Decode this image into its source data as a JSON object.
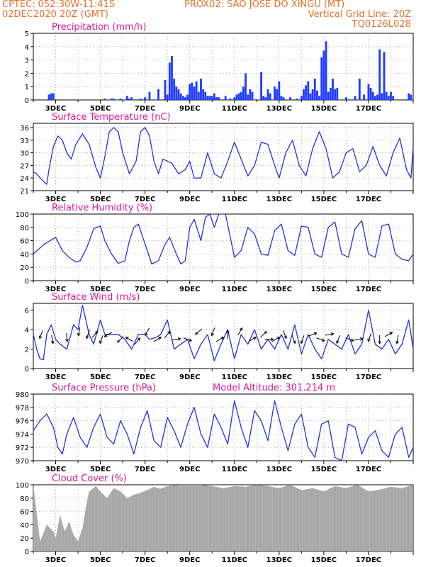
{
  "header": {
    "line1_left": "CPTEC:   052:30W-11:41S",
    "line1_right": "PROX02: SAO JOSE DO XINGU (MT)",
    "line2_left": "02DEC2020 20Z (GMT)",
    "line2_right": "Vertical Grid Line: 20Z",
    "line3_right": "TQ0126L028"
  },
  "colors": {
    "header": "#e8702a",
    "title": "#e0189a",
    "line": "#2233dd",
    "bar": "#1f3cff",
    "cloud": "#a8a8a8",
    "arrow": "#000000"
  },
  "chart_data": [
    {
      "type": "bar",
      "title": "Precipitation (mm/h)",
      "xlabel": "",
      "ylabel": "",
      "ylim": [
        0,
        5
      ],
      "yticks": [
        0,
        1,
        2,
        3,
        4,
        5
      ],
      "xtick_labels": [
        "3DEC",
        "5DEC",
        "7DEC",
        "9DEC",
        "11DEC",
        "13DEC",
        "15DEC",
        "17DEC"
      ],
      "x": [
        0.7,
        0.8,
        0.9,
        3.2,
        3.5,
        3.6,
        3.9,
        4.2,
        4.3,
        4.4,
        4.8,
        5.0,
        5.2,
        5.6,
        5.9,
        6.0,
        6.1,
        6.2,
        6.3,
        6.4,
        6.5,
        6.6,
        6.7,
        6.8,
        6.9,
        7.0,
        7.1,
        7.2,
        7.3,
        7.4,
        7.5,
        7.6,
        7.7,
        7.8,
        7.9,
        8.0,
        8.1,
        8.2,
        8.3,
        8.6,
        8.8,
        9.0,
        9.1,
        9.2,
        9.3,
        9.4,
        9.5,
        9.6,
        9.7,
        9.8,
        10.2,
        10.3,
        10.4,
        10.5,
        10.6,
        10.8,
        10.9,
        11.0,
        11.1,
        11.2,
        11.5,
        11.8,
        12.0,
        12.1,
        12.2,
        12.3,
        12.4,
        12.5,
        12.6,
        12.7,
        12.8,
        12.9,
        13.0,
        13.1,
        13.2,
        13.3,
        13.4,
        13.5,
        13.6,
        14.0,
        14.4,
        14.6,
        14.8,
        15.0,
        15.1,
        15.2,
        15.3,
        15.4,
        15.5,
        15.6,
        15.7,
        15.8,
        15.9,
        16.0,
        16.1,
        16.8,
        16.9
      ],
      "values": [
        0.4,
        0.5,
        0.5,
        0.1,
        0.1,
        0.1,
        0.1,
        0.3,
        0.1,
        0.2,
        0.1,
        0.2,
        0.6,
        0.8,
        1.5,
        0.4,
        2.8,
        3.3,
        1.6,
        1.0,
        0.8,
        0.5,
        0.3,
        0.2,
        0.4,
        1.2,
        1.3,
        1.0,
        1.4,
        0.6,
        1.6,
        0.8,
        0.6,
        0.3,
        0.3,
        0.3,
        0.5,
        0.2,
        0.2,
        0.3,
        0.1,
        0.2,
        0.4,
        0.5,
        0.6,
        1.0,
        2.0,
        0.4,
        0.8,
        0.6,
        2.1,
        0.3,
        0.2,
        0.8,
        0.5,
        1.0,
        0.8,
        1.4,
        0.3,
        0.2,
        0.2,
        0.1,
        0.3,
        0.8,
        1.1,
        1.4,
        0.5,
        0.8,
        1.6,
        0.7,
        0.3,
        3.2,
        3.7,
        4.4,
        0.6,
        0.9,
        1.6,
        0.8,
        0.9,
        0.2,
        0.3,
        1.6,
        0.4,
        1.2,
        0.9,
        0.6,
        0.3,
        0.4,
        3.8,
        0.5,
        3.6,
        0.6,
        0.3,
        0.6,
        0.3,
        0.5,
        0.4
      ]
    },
    {
      "type": "line",
      "title": "Surface Temperature (nC)",
      "xlabel": "",
      "ylabel": "",
      "ylim": [
        21,
        37
      ],
      "yticks": [
        21,
        24,
        27,
        30,
        33,
        36
      ],
      "xtick_labels": [
        "3DEC",
        "5DEC",
        "7DEC",
        "9DEC",
        "11DEC",
        "13DEC",
        "15DEC",
        "17DEC"
      ],
      "x": [
        0.0,
        0.15,
        0.4,
        0.6,
        0.7,
        0.9,
        1.1,
        1.3,
        1.5,
        1.7,
        1.9,
        2.2,
        2.5,
        2.8,
        3.0,
        3.2,
        3.4,
        3.6,
        3.8,
        4.0,
        4.3,
        4.6,
        4.8,
        5.0,
        5.2,
        5.4,
        5.6,
        5.8,
        6.0,
        6.2,
        6.5,
        6.8,
        7.0,
        7.2,
        7.5,
        7.8,
        8.1,
        8.4,
        8.7,
        9.0,
        9.3,
        9.6,
        9.9,
        10.2,
        10.5,
        10.8,
        11.0,
        11.3,
        11.6,
        11.9,
        12.2,
        12.5,
        12.8,
        13.1,
        13.4,
        13.7,
        14.0,
        14.3,
        14.6,
        14.9,
        15.2,
        15.5,
        15.8,
        16.1,
        16.4,
        16.7,
        16.9,
        17.0
      ],
      "values": [
        25.5,
        25.0,
        23.5,
        22.5,
        26.0,
        31.5,
        34.0,
        33.0,
        30.0,
        28.5,
        32.0,
        34.5,
        32.0,
        26.5,
        24.0,
        29.0,
        35.0,
        36.0,
        35.0,
        30.0,
        25.0,
        28.0,
        35.0,
        36.0,
        34.0,
        28.0,
        25.0,
        28.5,
        28.0,
        27.5,
        25.0,
        26.0,
        28.0,
        24.0,
        24.0,
        30.0,
        25.0,
        24.0,
        28.0,
        32.5,
        28.5,
        24.5,
        27.0,
        32.5,
        32.0,
        27.0,
        24.0,
        30.0,
        33.0,
        27.0,
        24.5,
        31.0,
        35.0,
        31.0,
        24.0,
        25.5,
        30.0,
        31.0,
        25.5,
        27.0,
        31.5,
        27.0,
        24.5,
        30.0,
        33.5,
        26.0,
        24.0,
        31.5
      ]
    },
    {
      "type": "line",
      "title": "Relative Humidity (%)",
      "xlabel": "",
      "ylabel": "",
      "ylim": [
        0,
        100
      ],
      "yticks": [
        0,
        20,
        40,
        60,
        80,
        100
      ],
      "xtick_labels": [
        "3DEC",
        "5DEC",
        "7DEC",
        "9DEC",
        "11DEC",
        "13DEC",
        "15DEC",
        "17DEC"
      ],
      "x": [
        0.0,
        0.5,
        1.0,
        1.3,
        1.6,
        1.9,
        2.1,
        2.4,
        2.7,
        3.0,
        3.2,
        3.5,
        3.8,
        4.1,
        4.3,
        4.5,
        4.7,
        5.0,
        5.3,
        5.6,
        5.9,
        6.1,
        6.4,
        6.6,
        6.8,
        7.0,
        7.2,
        7.5,
        7.7,
        7.9,
        8.1,
        8.3,
        8.6,
        9.0,
        9.3,
        9.6,
        9.9,
        10.2,
        10.5,
        10.8,
        11.1,
        11.4,
        11.7,
        12.0,
        12.3,
        12.6,
        12.9,
        13.2,
        13.5,
        13.8,
        14.1,
        14.4,
        14.7,
        15.0,
        15.3,
        15.6,
        15.9,
        16.2,
        16.5,
        16.8,
        17.0
      ],
      "values": [
        40.0,
        55.0,
        65.0,
        45.0,
        35.0,
        28.0,
        30.0,
        50.0,
        78.0,
        82.0,
        60.0,
        40.0,
        26.0,
        30.0,
        60.0,
        80.0,
        85.0,
        55.0,
        25.0,
        30.0,
        55.0,
        65.0,
        40.0,
        25.0,
        30.0,
        80.0,
        92.0,
        60.0,
        95.0,
        100.0,
        80.0,
        100.0,
        100.0,
        35.0,
        45.0,
        80.0,
        70.0,
        40.0,
        38.0,
        75.0,
        85.0,
        45.0,
        38.0,
        82.0,
        80.0,
        40.0,
        35.0,
        80.0,
        88.0,
        40.0,
        35.0,
        78.0,
        90.0,
        40.0,
        35.0,
        82.0,
        85.0,
        40.0,
        32.0,
        30.0,
        40.0
      ]
    },
    {
      "type": "line",
      "title": "Surface Wind (m/s)",
      "xlabel": "",
      "ylabel": "",
      "ylim": [
        0,
        6.7
      ],
      "yticks": [
        0,
        2,
        4,
        6
      ],
      "xtick_labels": [
        "3DEC",
        "5DEC",
        "7DEC",
        "9DEC",
        "11DEC",
        "13DEC",
        "15DEC",
        "17DEC"
      ],
      "x": [
        0.0,
        0.15,
        0.3,
        0.45,
        0.6,
        0.8,
        1.0,
        1.2,
        1.5,
        1.8,
        2.0,
        2.2,
        2.5,
        2.7,
        3.0,
        3.2,
        3.5,
        3.8,
        4.1,
        4.4,
        4.7,
        5.0,
        5.2,
        5.5,
        5.7,
        6.0,
        6.3,
        6.6,
        6.9,
        7.2,
        7.5,
        7.8,
        8.1,
        8.4,
        8.7,
        9.0,
        9.3,
        9.6,
        9.9,
        10.2,
        10.5,
        10.8,
        11.1,
        11.4,
        11.7,
        12.0,
        12.3,
        12.6,
        12.9,
        13.2,
        13.5,
        13.8,
        14.1,
        14.4,
        14.7,
        15.0,
        15.3,
        15.6,
        15.9,
        16.2,
        16.5,
        16.8,
        17.0
      ],
      "values": [
        3.5,
        2.0,
        1.0,
        0.9,
        3.5,
        4.5,
        3.0,
        2.5,
        2.0,
        4.5,
        4.0,
        6.5,
        3.5,
        2.5,
        5.0,
        3.5,
        3.5,
        3.5,
        3.0,
        2.0,
        3.5,
        3.5,
        3.0,
        3.2,
        3.5,
        5.0,
        2.0,
        2.5,
        3.0,
        1.0,
        2.5,
        3.5,
        0.8,
        2.5,
        4.0,
        1.0,
        3.5,
        2.5,
        4.0,
        2.0,
        3.0,
        2.0,
        3.5,
        2.0,
        4.5,
        1.5,
        3.5,
        2.0,
        1.0,
        3.0,
        2.5,
        2.0,
        3.5,
        1.5,
        2.5,
        6.0,
        2.5,
        2.0,
        3.0,
        1.5,
        2.5,
        5.0,
        2.0
      ]
    },
    {
      "type": "line",
      "title": "Surface Pressure (hPa)",
      "subtitle": "Model Altitude: 301.214 m",
      "xlabel": "",
      "ylabel": "",
      "ylim": [
        970,
        980
      ],
      "yticks": [
        970,
        972,
        974,
        976,
        978,
        980
      ],
      "xtick_labels": [
        "3DEC",
        "5DEC",
        "7DEC",
        "9DEC",
        "11DEC",
        "13DEC",
        "15DEC",
        "17DEC"
      ],
      "x": [
        0.0,
        0.3,
        0.6,
        0.9,
        1.1,
        1.3,
        1.5,
        1.8,
        2.1,
        2.4,
        2.7,
        3.0,
        3.3,
        3.6,
        3.9,
        4.2,
        4.5,
        4.8,
        5.1,
        5.4,
        5.7,
        6.0,
        6.3,
        6.6,
        6.9,
        7.2,
        7.5,
        7.8,
        8.1,
        8.4,
        8.7,
        9.0,
        9.3,
        9.6,
        9.9,
        10.2,
        10.5,
        10.8,
        11.1,
        11.4,
        11.7,
        12.0,
        12.3,
        12.6,
        12.9,
        13.2,
        13.5,
        13.8,
        14.1,
        14.4,
        14.7,
        15.0,
        15.3,
        15.6,
        15.9,
        16.2,
        16.5,
        16.8,
        17.0
      ],
      "values": [
        974.5,
        976.0,
        977.0,
        975.0,
        972.0,
        971.0,
        974.0,
        976.5,
        973.5,
        972.0,
        975.0,
        977.0,
        973.5,
        972.5,
        976.0,
        974.0,
        971.0,
        975.0,
        977.5,
        973.0,
        972.0,
        976.5,
        974.5,
        972.0,
        975.5,
        978.0,
        974.0,
        972.0,
        977.0,
        975.0,
        972.5,
        979.0,
        975.0,
        972.0,
        977.5,
        976.0,
        973.0,
        979.0,
        975.0,
        971.5,
        975.5,
        977.0,
        972.0,
        970.5,
        975.5,
        976.0,
        970.5,
        970.0,
        975.5,
        975.0,
        971.0,
        973.5,
        974.5,
        971.5,
        970.5,
        974.0,
        975.0,
        970.5,
        972.0
      ]
    },
    {
      "type": "area",
      "title": "Cloud Cover (%)",
      "xlabel": "",
      "ylabel": "",
      "ylim": [
        0,
        100
      ],
      "yticks": [
        0,
        20,
        40,
        60,
        80,
        100
      ],
      "xtick_labels": [
        "3DEC",
        "5DEC",
        "7DEC",
        "9DEC",
        "11DEC",
        "13DEC",
        "15DEC",
        "17DEC"
      ],
      "x": [
        0.0,
        0.3,
        0.6,
        0.9,
        1.0,
        1.2,
        1.4,
        1.6,
        1.8,
        2.0,
        2.2,
        2.4,
        2.5,
        2.8,
        3.0,
        3.3,
        3.6,
        3.9,
        4.2,
        4.5,
        4.8,
        5.1,
        5.4,
        5.7,
        6.0,
        6.5,
        7.0,
        7.5,
        8.0,
        8.5,
        9.0,
        9.5,
        10.0,
        10.5,
        11.0,
        11.5,
        12.0,
        12.5,
        13.0,
        13.5,
        14.0,
        14.5,
        15.0,
        15.5,
        16.0,
        16.5,
        17.0
      ],
      "values": [
        100.0,
        15.0,
        40.0,
        30.0,
        20.0,
        55.0,
        30.0,
        45.0,
        25.0,
        15.0,
        35.0,
        75.0,
        90.0,
        98.0,
        90.0,
        80.0,
        95.0,
        90.0,
        80.0,
        85.0,
        88.0,
        92.0,
        97.0,
        94.0,
        98.0,
        100.0,
        100.0,
        100.0,
        98.0,
        95.0,
        98.0,
        97.0,
        100.0,
        98.0,
        95.0,
        100.0,
        92.0,
        95.0,
        90.0,
        98.0,
        95.0,
        100.0,
        90.0,
        93.0,
        97.0,
        95.0,
        100.0
      ]
    }
  ],
  "wind_arrows": [
    {
      "day": 0.35,
      "dir_deg": 200,
      "speed": 3.5
    },
    {
      "day": 0.85,
      "dir_deg": 170,
      "speed": 3.0
    },
    {
      "day": 1.5,
      "dir_deg": 175,
      "speed": 3.2
    },
    {
      "day": 2.05,
      "dir_deg": 190,
      "speed": 3.8
    },
    {
      "day": 2.45,
      "dir_deg": 200,
      "speed": 3.5
    },
    {
      "day": 2.75,
      "dir_deg": 40,
      "speed": 3.5
    },
    {
      "day": 3.05,
      "dir_deg": 200,
      "speed": 3.0
    },
    {
      "day": 3.35,
      "dir_deg": 240,
      "speed": 3.5
    },
    {
      "day": 3.9,
      "dir_deg": 225,
      "speed": 3.0
    },
    {
      "day": 4.3,
      "dir_deg": 300,
      "speed": 3.0
    },
    {
      "day": 4.65,
      "dir_deg": 40,
      "speed": 2.8
    },
    {
      "day": 5.1,
      "dir_deg": 210,
      "speed": 3.8
    },
    {
      "day": 5.55,
      "dir_deg": 60,
      "speed": 3.0
    },
    {
      "day": 6.0,
      "dir_deg": 40,
      "speed": 3.5
    },
    {
      "day": 6.4,
      "dir_deg": 80,
      "speed": 3.0
    },
    {
      "day": 6.9,
      "dir_deg": 110,
      "speed": 3.0
    },
    {
      "day": 7.4,
      "dir_deg": 230,
      "speed": 3.8
    },
    {
      "day": 8.05,
      "dir_deg": 200,
      "speed": 3.8
    },
    {
      "day": 8.35,
      "dir_deg": 60,
      "speed": 3.0
    },
    {
      "day": 8.7,
      "dir_deg": 0,
      "speed": 3.5
    },
    {
      "day": 9.25,
      "dir_deg": 30,
      "speed": 3.8
    },
    {
      "day": 9.8,
      "dir_deg": 60,
      "speed": 3.0
    },
    {
      "day": 10.3,
      "dir_deg": 45,
      "speed": 3.5
    },
    {
      "day": 10.55,
      "dir_deg": 90,
      "speed": 3.0
    },
    {
      "day": 10.85,
      "dir_deg": 60,
      "speed": 3.0
    },
    {
      "day": 11.25,
      "dir_deg": 160,
      "speed": 3.5
    },
    {
      "day": 11.65,
      "dir_deg": 160,
      "speed": 3.0
    },
    {
      "day": 12.05,
      "dir_deg": 200,
      "speed": 3.0
    },
    {
      "day": 12.5,
      "dir_deg": 70,
      "speed": 3.5
    },
    {
      "day": 12.85,
      "dir_deg": 110,
      "speed": 3.0
    },
    {
      "day": 13.25,
      "dir_deg": 80,
      "speed": 3.5
    },
    {
      "day": 13.65,
      "dir_deg": 200,
      "speed": 3.0
    },
    {
      "day": 14.15,
      "dir_deg": 110,
      "speed": 3.0
    },
    {
      "day": 14.55,
      "dir_deg": 80,
      "speed": 3.0
    },
    {
      "day": 15.05,
      "dir_deg": 200,
      "speed": 3.2
    },
    {
      "day": 15.5,
      "dir_deg": 180,
      "speed": 3.0
    },
    {
      "day": 15.9,
      "dir_deg": 60,
      "speed": 3.5
    },
    {
      "day": 16.3,
      "dir_deg": 190,
      "speed": 3.0
    }
  ]
}
